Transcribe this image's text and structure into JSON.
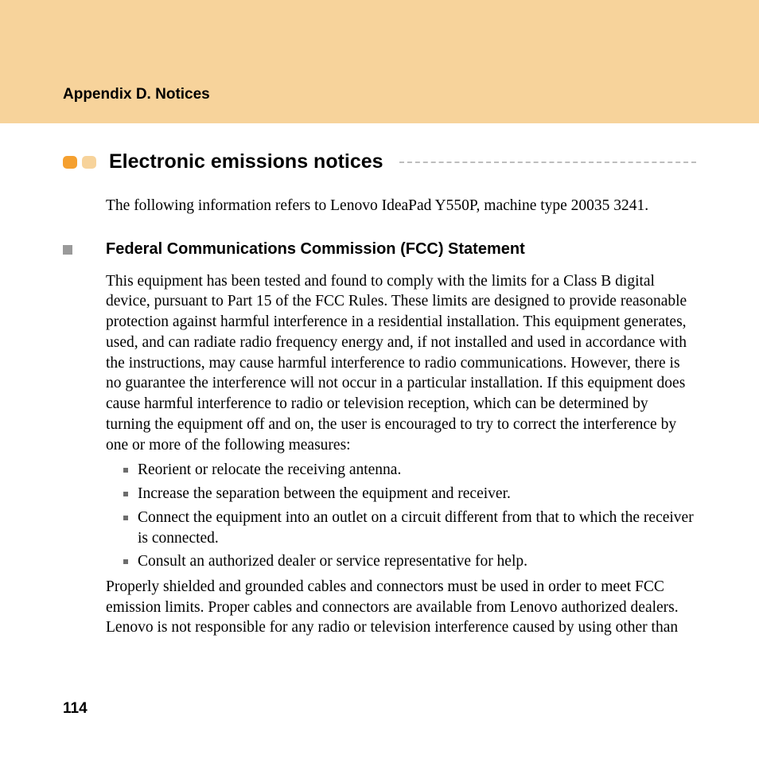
{
  "header": {
    "band_color": "#f7d39b",
    "title": "Appendix D. Notices"
  },
  "section": {
    "pill_colors": [
      "#f5a02f",
      "#f7d39b"
    ],
    "heading": "Electronic emissions notices",
    "rule_color": "#bdbdbd",
    "intro": "The following information refers to Lenovo IdeaPad Y550P, machine type 20035 3241."
  },
  "subsection": {
    "bullet_color": "#9a9a9a",
    "heading": "Federal Communications Commission (FCC) Statement",
    "body1": "This equipment has been tested and found to comply with the limits for a Class B digital device, pursuant to Part 15 of the FCC Rules. These limits are designed to provide reasonable protection against harmful interference in a residential installation. This equipment generates, used, and can radiate radio frequency energy and, if not installed and used in accordance with the instructions, may cause harmful interference to radio communications. However, there is no guarantee the interference will not occur in a particular installation. If this equipment does cause harmful interference to radio or television reception, which can be determined by turning the equipment off and on, the user is encouraged to try to correct the interference by one or more of the following measures:",
    "measures": [
      "Reorient or relocate the receiving antenna.",
      "Increase the separation between the equipment and receiver.",
      "Connect the equipment into an outlet on a circuit different from that to which the receiver is connected.",
      "Consult an authorized dealer or service representative for help."
    ],
    "body2": "Properly shielded and grounded cables and connectors must be used in order to meet FCC emission limits. Proper cables and connectors are available from Lenovo authorized dealers. Lenovo is not responsible for any radio or television interference caused by using other than"
  },
  "page_number": "114",
  "typography": {
    "heading_font": "Arial",
    "body_font": "Palatino",
    "heading_size_pt": 25,
    "subheading_size_pt": 20,
    "body_size_pt": 19.5,
    "header_title_size_pt": 19,
    "page_number_size_pt": 19
  },
  "colors": {
    "background": "#ffffff",
    "text": "#000000",
    "bullet_square": "#6d6d6d"
  }
}
